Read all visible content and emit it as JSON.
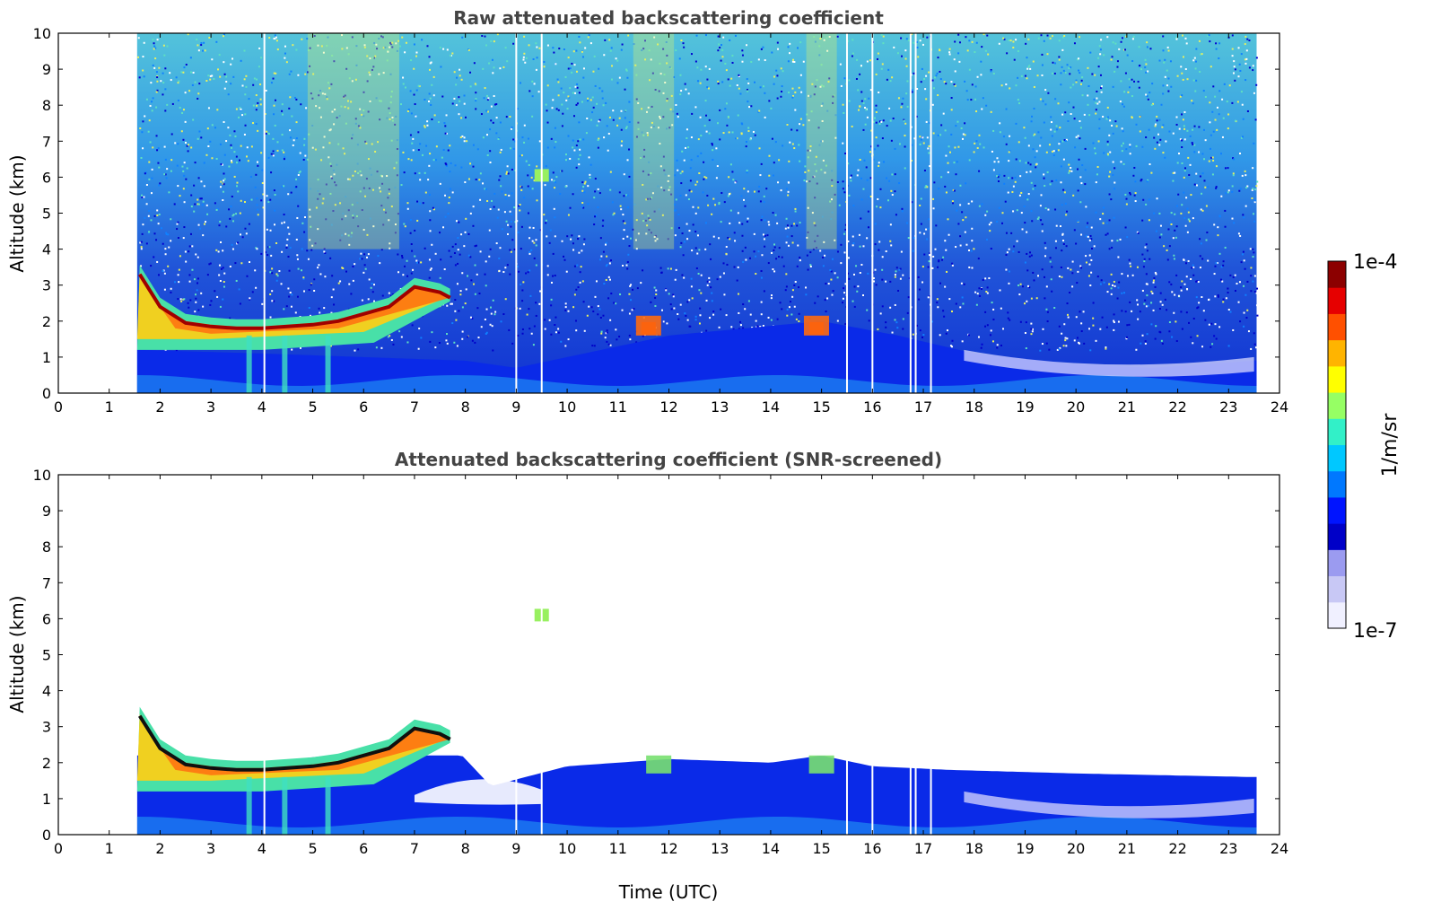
{
  "chart_data": [
    {
      "type": "heatmap",
      "title": "Raw attenuated backscattering coefficient",
      "xlabel": "",
      "ylabel": "Altitude (km)",
      "xlim": [
        0,
        24
      ],
      "ylim": [
        0,
        10
      ],
      "xticks": [
        0,
        1,
        2,
        3,
        4,
        5,
        6,
        7,
        8,
        9,
        10,
        11,
        12,
        13,
        14,
        15,
        16,
        17,
        18,
        19,
        20,
        21,
        22,
        23,
        24
      ],
      "yticks": [
        0,
        1,
        2,
        3,
        4,
        5,
        6,
        7,
        8,
        9,
        10
      ],
      "data_start_time": 1.55,
      "data_end_time": 23.55,
      "cloud_layer": {
        "description": "strong backscatter layer top (km)",
        "times": [
          1.6,
          2.0,
          2.5,
          3.0,
          3.5,
          4.0,
          4.5,
          5.0,
          5.5,
          6.0,
          6.5,
          7.0,
          7.5,
          7.7
        ],
        "altitudes": [
          3.3,
          2.4,
          1.95,
          1.85,
          1.8,
          1.8,
          1.85,
          1.9,
          2.0,
          2.2,
          2.4,
          2.95,
          2.8,
          2.65
        ]
      },
      "boundary_layer": {
        "times": [
          1.6,
          4,
          8,
          9,
          12,
          15,
          16.5,
          18,
          20,
          21.5,
          23.5
        ],
        "altitudes": [
          1.2,
          1.1,
          0.9,
          0.7,
          1.6,
          2.0,
          1.6,
          1.1,
          0.8,
          0.7,
          0.9
        ]
      },
      "upper_clouds": [
        {
          "time": 9.5,
          "altitude": 6.05
        },
        {
          "time": 11.6,
          "altitude": 1.8
        },
        {
          "time": 14.9,
          "altitude": 1.8
        }
      ],
      "gaps": [
        4.05,
        9.0,
        9.5,
        15.5,
        16.0,
        16.75,
        16.85,
        17.15
      ]
    },
    {
      "type": "heatmap",
      "title": "Attenuated backscattering coefficient (SNR-screened)",
      "xlabel": "Time (UTC)",
      "ylabel": "Altitude (km)",
      "xlim": [
        0,
        24
      ],
      "ylim": [
        0,
        10
      ],
      "xticks": [
        0,
        1,
        2,
        3,
        4,
        5,
        6,
        7,
        8,
        9,
        10,
        11,
        12,
        13,
        14,
        15,
        16,
        17,
        18,
        19,
        20,
        21,
        22,
        23,
        24
      ],
      "yticks": [
        0,
        1,
        2,
        3,
        4,
        5,
        6,
        7,
        8,
        9,
        10
      ],
      "data_start_time": 1.55,
      "data_end_time": 23.55,
      "screened_top": {
        "times": [
          1.6,
          2.0,
          2.5,
          4,
          6,
          7.5,
          8.5,
          10,
          12,
          14,
          15,
          16,
          17.5,
          20,
          23.5
        ],
        "altitudes": [
          3.7,
          2.5,
          2.1,
          2.0,
          2.3,
          2.85,
          1.35,
          1.9,
          2.1,
          2.0,
          2.2,
          1.9,
          1.8,
          1.7,
          1.6
        ]
      },
      "upper_clouds": [
        {
          "time": 9.5,
          "altitude": 6.1
        }
      ],
      "gaps": [
        4.05,
        9.0,
        9.5,
        15.5,
        16.0,
        16.75,
        16.85,
        17.15
      ]
    }
  ],
  "colorbar": {
    "label": "1/m/sr",
    "max_label": "1e-4",
    "min_label": "1e-7",
    "colors": [
      "#f0f0ff",
      "#c8c8f5",
      "#9b9bf0",
      "#0000c8",
      "#0014ff",
      "#0078ff",
      "#00c8ff",
      "#32f0c8",
      "#96ff64",
      "#ffff00",
      "#ffb400",
      "#ff5000",
      "#e60000",
      "#8c0000"
    ]
  }
}
